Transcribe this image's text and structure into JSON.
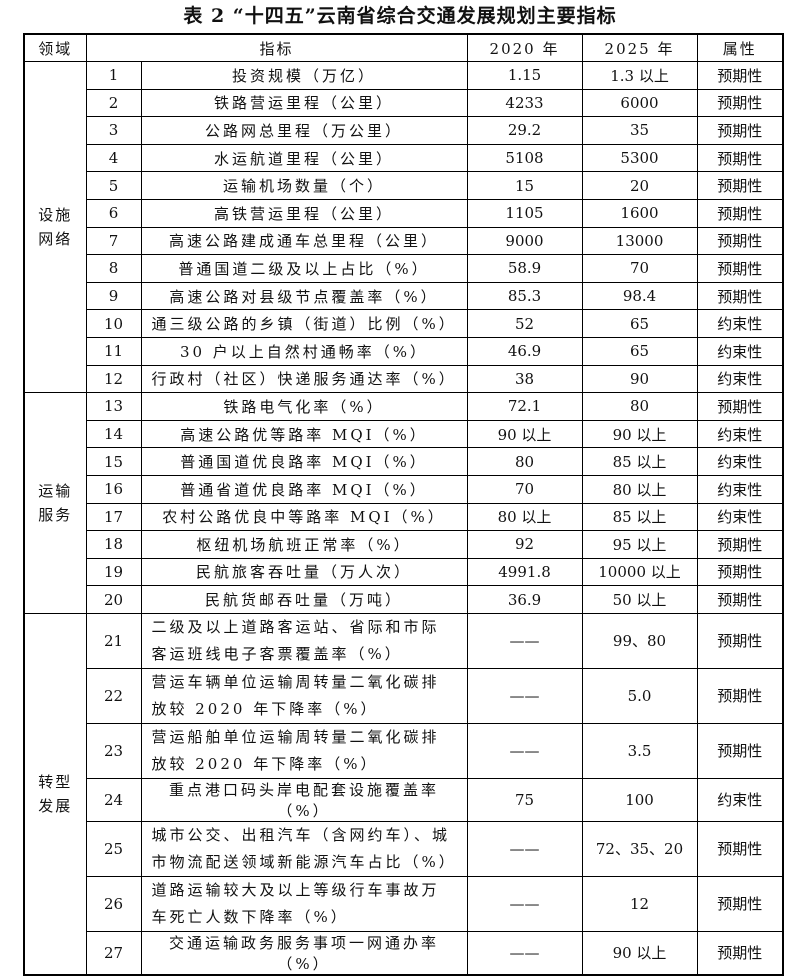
{
  "title": "表 2 “十四五”云南省综合交通发展规划主要指标",
  "table": {
    "headers": [
      "领域",
      "指标",
      "2020 年",
      "2025 年",
      "属性"
    ],
    "groups": [
      {
        "domain": "设施网络",
        "rows": [
          [
            "1",
            "投资规模（万亿）",
            "1.15",
            "1.3 以上",
            "预期性"
          ],
          [
            "2",
            "铁路营运里程（公里）",
            "4233",
            "6000",
            "预期性"
          ],
          [
            "3",
            "公路网总里程（万公里）",
            "29.2",
            "35",
            "预期性"
          ],
          [
            "4",
            "水运航道里程（公里）",
            "5108",
            "5300",
            "预期性"
          ],
          [
            "5",
            "运输机场数量（个）",
            "15",
            "20",
            "预期性"
          ],
          [
            "6",
            "高铁营运里程（公里）",
            "1105",
            "1600",
            "预期性"
          ],
          [
            "7",
            "高速公路建成通车总里程（公里）",
            "9000",
            "13000",
            "预期性"
          ],
          [
            "8",
            "普通国道二级及以上占比（%）",
            "58.9",
            "70",
            "预期性"
          ],
          [
            "9",
            "高速公路对县级节点覆盖率（%）",
            "85.3",
            "98.4",
            "预期性"
          ],
          [
            "10",
            "通三级公路的乡镇（街道）比例（%）",
            "52",
            "65",
            "约束性"
          ],
          [
            "11",
            "30 户以上自然村通畅率（%）",
            "46.9",
            "65",
            "约束性"
          ],
          [
            "12",
            "行政村（社区）快递服务通达率（%）",
            "38",
            "90",
            "约束性"
          ]
        ]
      },
      {
        "domain": "运输服务",
        "rows": [
          [
            "13",
            "铁路电气化率（%）",
            "72.1",
            "80",
            "预期性"
          ],
          [
            "14",
            "高速公路优等路率 MQI（%）",
            "90 以上",
            "90 以上",
            "约束性"
          ],
          [
            "15",
            "普通国道优良路率 MQI（%）",
            "80",
            "85 以上",
            "约束性"
          ],
          [
            "16",
            "普通省道优良路率 MQI（%）",
            "70",
            "80 以上",
            "约束性"
          ],
          [
            "17",
            "农村公路优良中等路率 MQI（%）",
            "80 以上",
            "85 以上",
            "约束性"
          ],
          [
            "18",
            "枢纽机场航班正常率（%）",
            "92",
            "95 以上",
            "预期性"
          ],
          [
            "19",
            "民航旅客吞吐量（万人次）",
            "4991.8",
            "10000 以上",
            "预期性"
          ],
          [
            "20",
            "民航货邮吞吐量（万吨）",
            "36.9",
            "50 以上",
            "预期性"
          ]
        ]
      },
      {
        "domain": "转型发展",
        "rows": [
          [
            "21",
            "二级及以上道路客运站、省际和市际客运班线电子客票覆盖率（%）",
            "——",
            "99、80",
            "预期性"
          ],
          [
            "22",
            "营运车辆单位运输周转量二氧化碳排放较 2020 年下降率（%）",
            "——",
            "5.0",
            "预期性"
          ],
          [
            "23",
            "营运船舶单位运输周转量二氧化碳排放较 2020 年下降率（%）",
            "——",
            "3.5",
            "预期性"
          ],
          [
            "24",
            "重点港口码头岸电配套设施覆盖率（%）",
            "75",
            "100",
            "约束性"
          ],
          [
            "25",
            "城市公交、出租汽车（含网约车）、城市物流配送领域新能源汽车占比（%）",
            "——",
            "72、35、20",
            "预期性"
          ],
          [
            "26",
            "道路运输较大及以上等级行车事故万车死亡人数下降率（%）",
            "——",
            "12",
            "预期性"
          ],
          [
            "27",
            "交通运输政务服务事项一网通办率（%）",
            "——",
            "90 以上",
            "预期性"
          ]
        ]
      }
    ]
  }
}
